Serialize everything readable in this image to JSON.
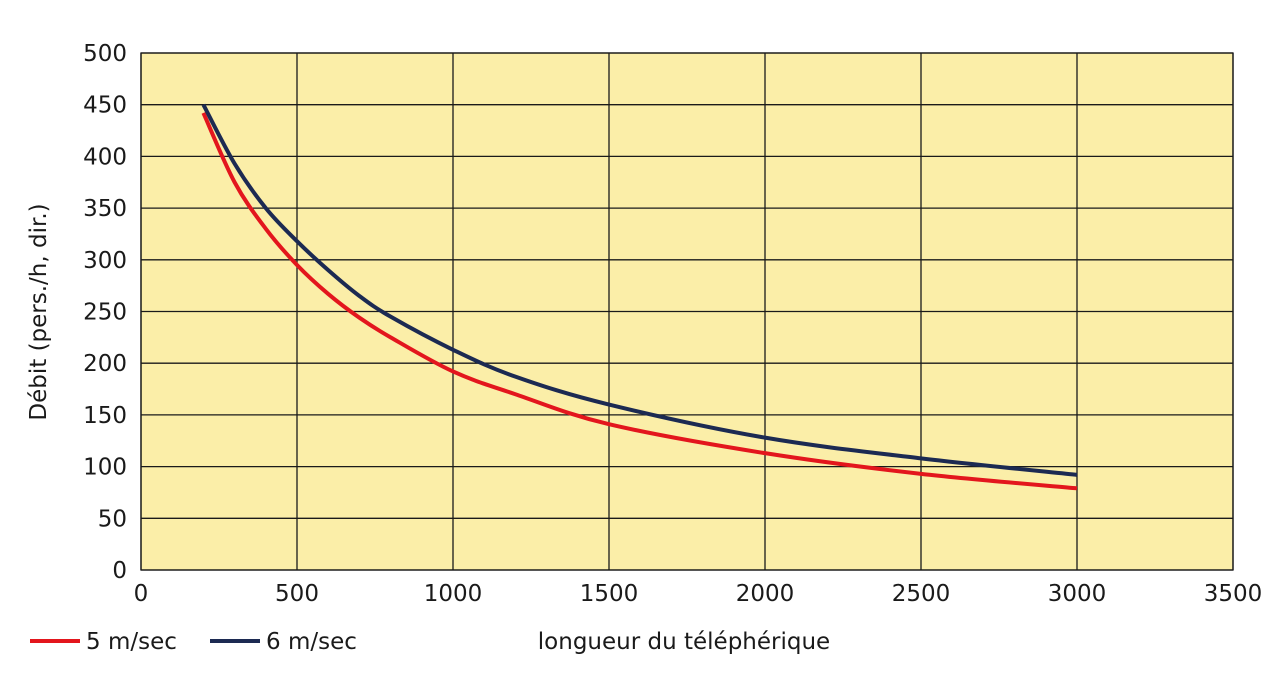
{
  "chart_data": {
    "type": "line",
    "xlabel": "longueur du téléphérique",
    "ylabel": "Débit (pers./h, dir.)",
    "xlim": [
      0,
      3500
    ],
    "ylim": [
      0,
      500
    ],
    "x_ticks": [
      0,
      500,
      1000,
      1500,
      2000,
      2500,
      3000,
      3500
    ],
    "y_ticks": [
      0,
      50,
      100,
      150,
      200,
      250,
      300,
      350,
      400,
      450,
      500
    ],
    "grid": true,
    "legend_position": "bottom-left",
    "background_color": "#fbeea8",
    "series": [
      {
        "name": "5 m/sec",
        "color": "#e3161d",
        "x": [
          200,
          300,
          400,
          500,
          600,
          700,
          800,
          1000,
          1200,
          1500,
          2000,
          2500,
          3000
        ],
        "y": [
          442,
          375,
          330,
          295,
          267,
          244,
          225,
          192,
          170,
          141,
          113,
          93,
          79
        ]
      },
      {
        "name": "6 m/sec",
        "color": "#1c2a52",
        "x": [
          200,
          300,
          400,
          500,
          600,
          700,
          800,
          1000,
          1200,
          1500,
          2000,
          2500,
          3000
        ],
        "y": [
          450,
          393,
          350,
          318,
          290,
          265,
          245,
          213,
          187,
          160,
          128,
          108,
          92
        ]
      }
    ]
  }
}
